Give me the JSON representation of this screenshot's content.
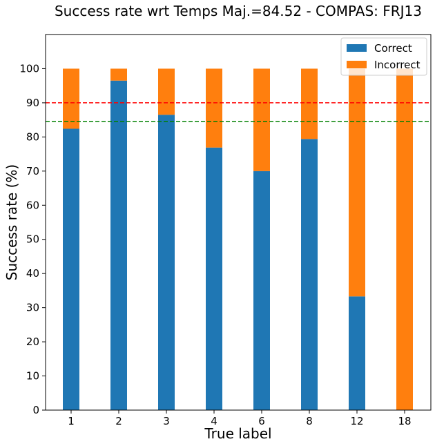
{
  "chart_data": {
    "type": "bar",
    "stacked": true,
    "title": "Success rate wrt Temps Maj.=84.52 - COMPAS:  FRJ13",
    "xlabel": "True label",
    "ylabel": "Success rate (%)",
    "categories": [
      "1",
      "2",
      "3",
      "4",
      "6",
      "8",
      "12",
      "18"
    ],
    "series": [
      {
        "name": "Correct",
        "color": "#1f77b4",
        "values": [
          82.4,
          96.5,
          86.5,
          76.9,
          70.0,
          79.4,
          33.3,
          0.0
        ]
      },
      {
        "name": "Incorrect",
        "color": "#ff7f0e",
        "values": [
          17.6,
          3.5,
          13.5,
          23.1,
          30.0,
          20.6,
          66.7,
          100.0
        ]
      }
    ],
    "reference_lines": [
      {
        "value": 90,
        "color": "#ff0000",
        "style": "dashed"
      },
      {
        "value": 84.52,
        "color": "#008000",
        "style": "dashed"
      }
    ],
    "ylim": [
      0,
      110
    ],
    "yticks": [
      0,
      10,
      20,
      30,
      40,
      50,
      60,
      70,
      80,
      90,
      100
    ],
    "grid": false,
    "legend_position": "top-right"
  }
}
